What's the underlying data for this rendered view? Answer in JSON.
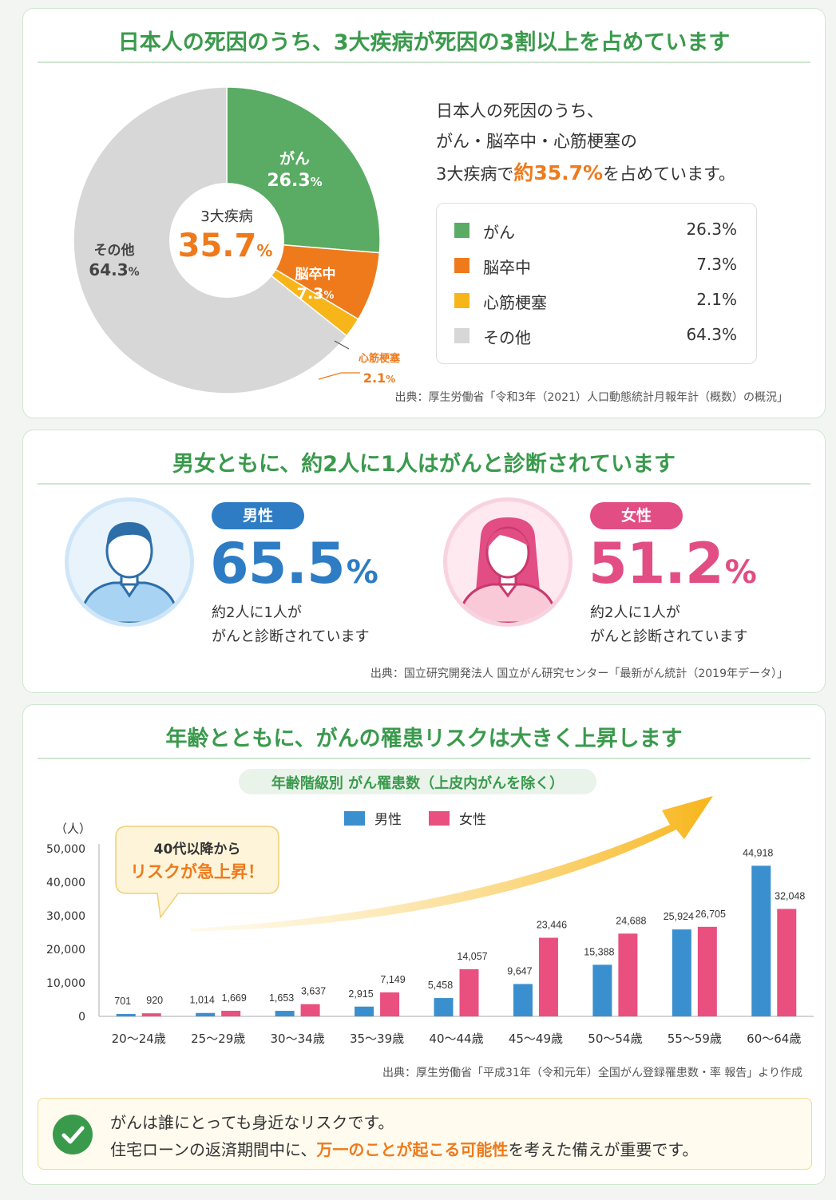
{
  "section1": {
    "title": "日本人の死因のうち、3大疾病が死因の3割以上を占めています",
    "desc_line1": "日本人の死因のうち、",
    "desc_line2": "がん・脳卒中・心筋梗塞の",
    "desc_line3_pre": "3大疾病で",
    "desc_line3_hl": "約35.7%",
    "desc_line3_post": "を占めています。",
    "center_label": "3大疾病",
    "center_value": "35.7",
    "center_unit": "%",
    "source": "出典：厚生労働省「令和3年（2021）人口動態統計月報年計（概数）の概況」"
  },
  "section2": {
    "title": "男女ともに、約2人に1人はがんと診断されています",
    "male": {
      "badge": "男性",
      "value": "65.5",
      "unit": "%",
      "note1": "約2人に1人が",
      "note2": "がんと診断されています"
    },
    "female": {
      "badge": "女性",
      "value": "51.2",
      "unit": "%",
      "note1": "約2人に1人が",
      "note2": "がんと診断されています"
    },
    "source": "出典：国立研究開発法人 国立がん研究センター「最新がん統計（2019年データ）」"
  },
  "section3": {
    "title": "年齢とともに、がんの罹患リスクは大きく上昇します",
    "chart_title": "年齢階級別 がん罹患数（上皮内がんを除く）",
    "callout_line1": "40代以降から",
    "callout_line2": "リスクが急上昇！",
    "source": "出典：厚生労働省「平成31年（令和元年）全国がん登録罹患数・率 報告」より作成"
  },
  "note": {
    "line1": "がんは誰にとっても身近なリスクです。",
    "line2_pre": "住宅ローンの返済期間中に、",
    "line2_hl": "万一のことが起こる可能性",
    "line2_post": "を考えた備えが重要です。"
  },
  "colors": {
    "green": "#5aab63",
    "orange": "#ee7a1c",
    "yellow": "#f8b51a",
    "gray": "#d7d7d7",
    "male": "#3a8fce",
    "female": "#e9507f",
    "title_green": "#3a9a4c"
  },
  "chart_data": [
    {
      "type": "pie",
      "slices": [
        {
          "name": "がん",
          "label_line1": "がん",
          "value": 26.3,
          "display": "26.3%",
          "color": "#5aab63"
        },
        {
          "name": "脳卒中",
          "label_line1": "脳卒中",
          "value": 7.3,
          "display": "7.3%",
          "color": "#ee7a1c"
        },
        {
          "name": "心筋梗塞",
          "label_line1": "心筋梗塞",
          "value": 2.1,
          "display": "2.1%",
          "color": "#f8b51a"
        },
        {
          "name": "その他",
          "label_line1": "その他",
          "value": 64.3,
          "display": "64.3%",
          "color": "#d7d7d7"
        }
      ]
    },
    {
      "type": "bar",
      "title": "年齢階級別 がん罹患数（上皮内がんを除く）",
      "ylabel": "（人）",
      "ylim": [
        0,
        50000
      ],
      "yticks": [
        "0",
        "10,000",
        "20,000",
        "30,000",
        "40,000",
        "50,000"
      ],
      "categories": [
        "20～24歳",
        "25～29歳",
        "30～34歳",
        "35～39歳",
        "40～44歳",
        "45～49歳",
        "50～54歳",
        "55～59歳",
        "60～64歳"
      ],
      "legend_position": "top",
      "series": [
        {
          "name": "男性",
          "color": "#3a8fce",
          "values": [
            701,
            1014,
            1653,
            2915,
            5458,
            9647,
            15388,
            25924,
            44918
          ],
          "labels": [
            "701",
            "1,014",
            "1,653",
            "2,915",
            "5,458",
            "9,647",
            "15,388",
            "25,924",
            "44,918"
          ]
        },
        {
          "name": "女性",
          "color": "#e9507f",
          "values": [
            920,
            1669,
            3637,
            7149,
            14057,
            23446,
            24688,
            26705,
            32048
          ],
          "labels": [
            "920",
            "1,669",
            "3,637",
            "7,149",
            "14,057",
            "23,446",
            "24,688",
            "26,705",
            "32,048"
          ]
        }
      ]
    }
  ]
}
